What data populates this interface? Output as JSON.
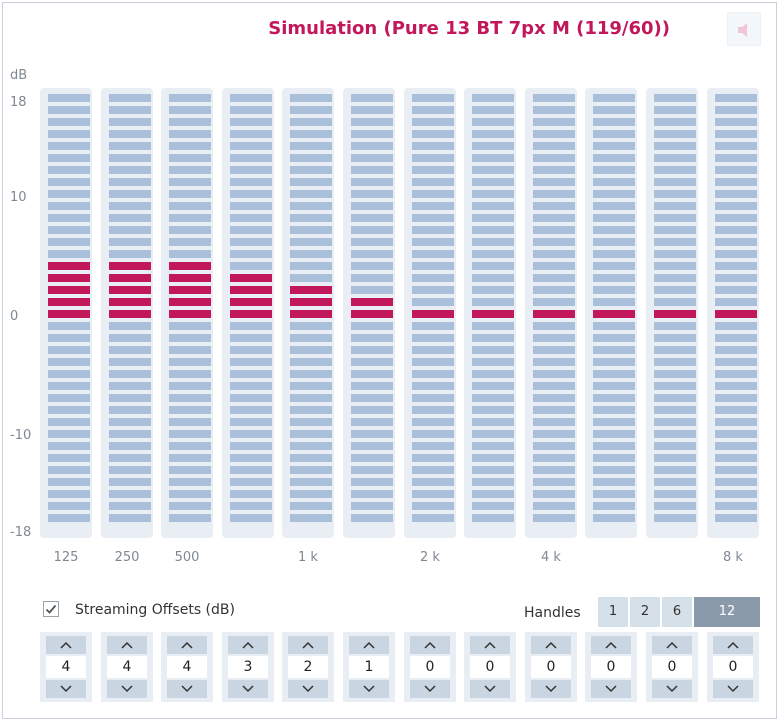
{
  "header": {
    "title": "Simulation (Pure 13 BT 7px M (119/60))",
    "speaker_icon": "speaker-muted-icon"
  },
  "colors": {
    "accent": "#c2185b",
    "segment_off": "#aac0da",
    "band_bg": "#e8eef4",
    "handle_selected": "#8a9aab"
  },
  "chart_data": {
    "type": "bar",
    "ylabel": "dB",
    "yticks": [
      "18",
      "10",
      "0",
      "-10",
      "-18"
    ],
    "ylim": [
      -18,
      18
    ],
    "categories": [
      "125",
      "250",
      "500",
      "",
      "1 k",
      "",
      "2 k",
      "",
      "4 k",
      "",
      "",
      "8 k"
    ],
    "values": [
      4,
      4,
      4,
      3,
      2,
      1,
      0,
      0,
      0,
      0,
      0,
      0
    ]
  },
  "streaming": {
    "checked": true,
    "label": "Streaming Offsets (dB)"
  },
  "handles": {
    "label": "Handles",
    "options": [
      "1",
      "2",
      "6",
      "12"
    ],
    "selected": "12"
  },
  "offsets": [
    "4",
    "4",
    "4",
    "3",
    "2",
    "1",
    "0",
    "0",
    "0",
    "0",
    "0",
    "0"
  ]
}
